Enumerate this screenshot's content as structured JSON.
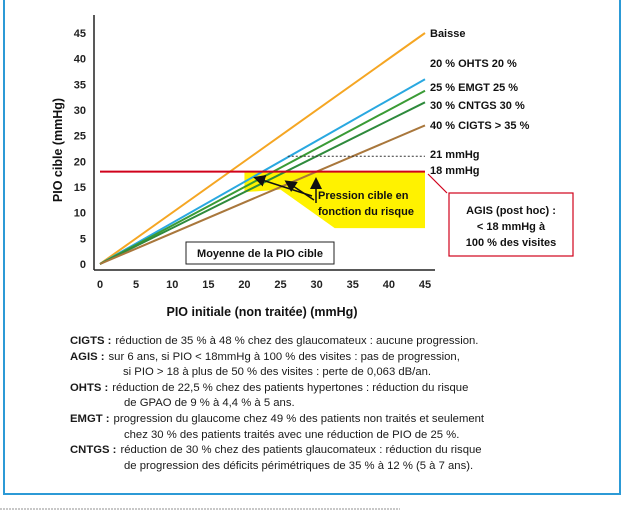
{
  "chart_data": {
    "type": "line",
    "xlabel": "PIO  initiale (non traitée) (mmHg)",
    "ylabel": "PIO cible (mmHg)",
    "xlim": [
      0,
      45
    ],
    "ylim": [
      0,
      45
    ],
    "x_ticks": [
      "0",
      "5",
      "10",
      "15",
      "20",
      "25",
      "30",
      "35",
      "40",
      "45"
    ],
    "y_ticks": [
      "0",
      "5",
      "10",
      "15",
      "20",
      "25",
      "30",
      "35",
      "40",
      "45"
    ],
    "grid": false,
    "series": [
      {
        "name": "Baisse",
        "color": "#f5a623",
        "x": [
          0,
          45
        ],
        "y": [
          0,
          45
        ]
      },
      {
        "name": "20 % OHTS 20 %",
        "color": "#29a8e0",
        "x": [
          0,
          45
        ],
        "y": [
          0,
          36
        ]
      },
      {
        "name": "25 % EMGT 25 %",
        "color": "#3a9b35",
        "x": [
          0,
          45
        ],
        "y": [
          0,
          33.75
        ]
      },
      {
        "name": "30 % CNTGS 30 %",
        "color": "#2e8a3c",
        "x": [
          0,
          45
        ],
        "y": [
          0,
          31.5
        ]
      },
      {
        "name": "40 % CIGTS > 35 %",
        "color": "#a9773c",
        "x": [
          0,
          45
        ],
        "y": [
          0,
          27
        ]
      }
    ],
    "reference_lines": [
      {
        "label": "21 mmHg",
        "y": 21,
        "x_start": 26,
        "x_end": 45,
        "style": "dotted",
        "color": "#333333"
      },
      {
        "label": "18 mmHg",
        "y": 18,
        "x_start": 0,
        "x_end": 45,
        "style": "solid",
        "color": "#d0021b"
      }
    ],
    "shaded_region": {
      "label": "Pression cible en fonction du risque",
      "color": "#fff200"
    },
    "annotations": {
      "pression": [
        "Pression cible en",
        "fonction du risque"
      ],
      "moyenne": "Moyenne de la PIO cible",
      "agis_box": [
        "AGIS (post hoc) :",
        "< 18 mmHg à",
        "100 % des visites"
      ]
    }
  },
  "notes": [
    {
      "key": "CIGTS :",
      "lines": [
        "réduction de 35 % à 48 % chez des glaucomateux : aucune progression."
      ]
    },
    {
      "key": "AGIS :",
      "lines": [
        "sur 6 ans, si PIO < 18mmHg à 100 % des visites : pas de progression,",
        "si PIO > 18 à plus de 50 % des visites : perte de 0,063 dB/an."
      ]
    },
    {
      "key": "OHTS :",
      "lines": [
        "réduction de 22,5 % chez des patients hypertones : réduction du risque",
        "de GPAO de 9 % à 4,4 % à 5 ans."
      ]
    },
    {
      "key": "EMGT :",
      "lines": [
        "progression du glaucome chez 49 % des patients non traités et seulement",
        "chez 30 % des patients traités avec une réduction de PIO de 25 %."
      ]
    },
    {
      "key": "CNTGS :",
      "lines": [
        "réduction de 30 % chez des patients glaucomateux : réduction du risque",
        "de progression des déficits périmétriques de 35 % à 12 % (5 à 7 ans)."
      ]
    }
  ]
}
